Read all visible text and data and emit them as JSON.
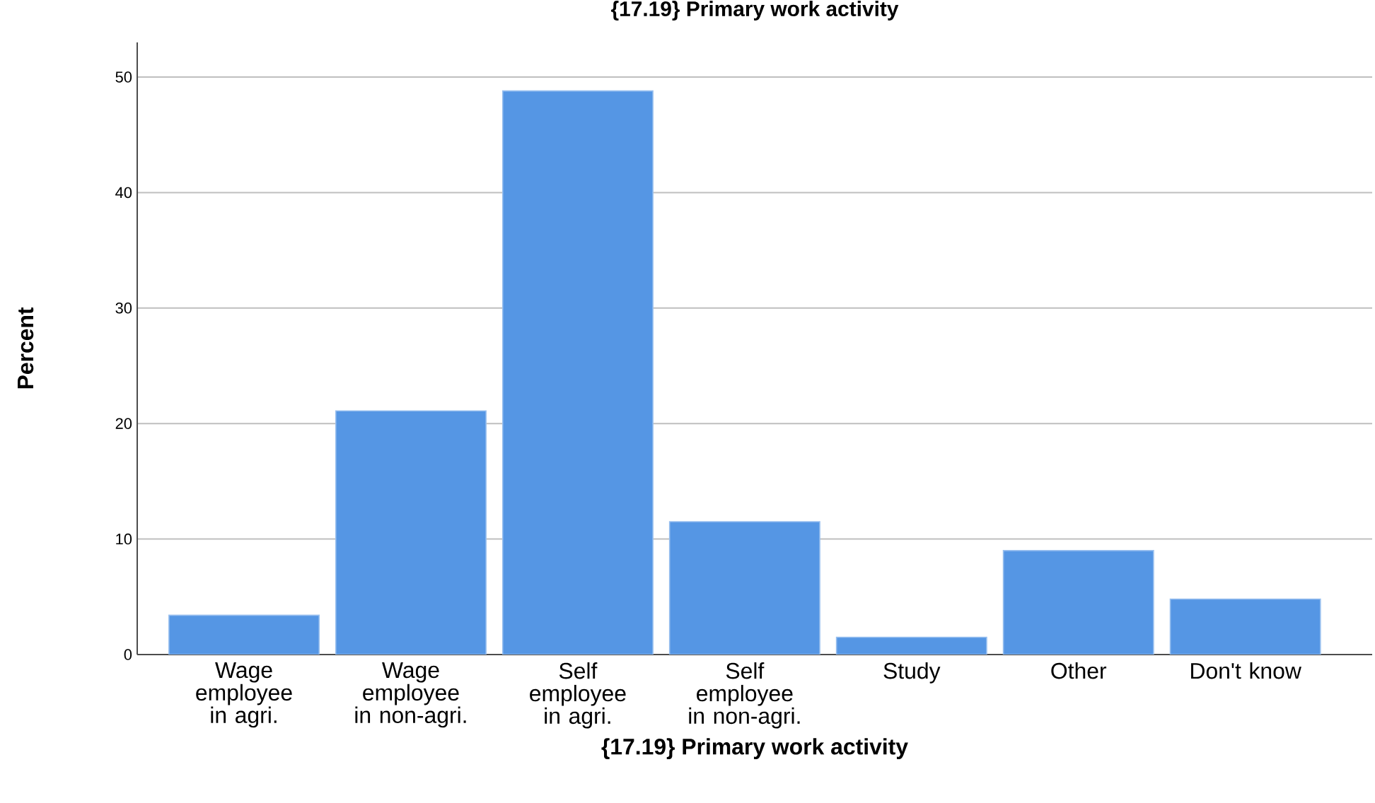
{
  "chart_data": {
    "type": "bar",
    "title": "{17.19} Primary work activity",
    "xlabel": "{17.19} Primary work activity",
    "ylabel": "Percent",
    "categories": [
      "Wage employee in agri.",
      "Wage employee in non-agri.",
      "Self employee in agri.",
      "Self employee in non-agri.",
      "Study",
      "Other",
      "Don't know"
    ],
    "values": [
      3.4,
      21.1,
      48.8,
      11.5,
      1.5,
      9.0,
      4.8
    ],
    "color": "#5596e4",
    "ylim": [
      0,
      53
    ],
    "yticks": [
      0,
      10,
      20,
      30,
      40,
      50
    ],
    "grid": "y"
  }
}
